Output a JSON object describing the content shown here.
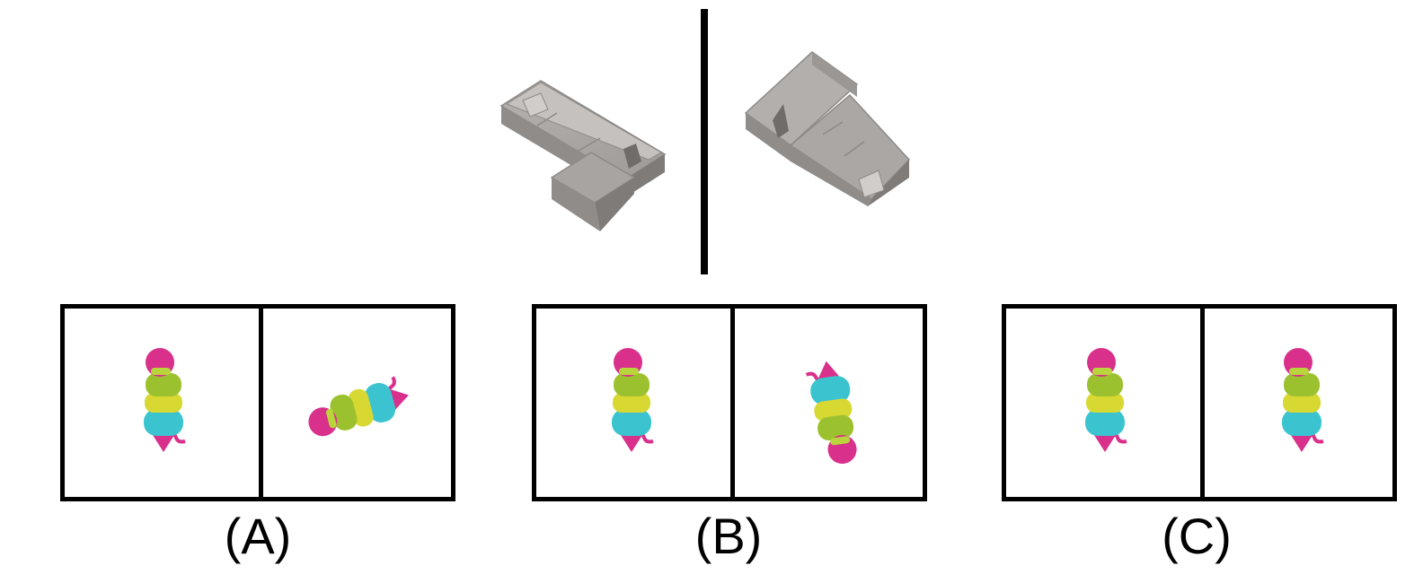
{
  "options": [
    {
      "id": "A",
      "label": "(A)"
    },
    {
      "id": "B",
      "label": "(B)"
    },
    {
      "id": "C",
      "label": "(C)"
    }
  ],
  "colors": {
    "sofa": "#a9a6a4",
    "magenta": "#d9308c",
    "green": "#9cc12f",
    "yellow": "#d8d832",
    "cyan": "#3bc4cf"
  },
  "icons": {
    "reference_left": "sofa-top-view",
    "reference_right": "sofa-mirrored-view",
    "figure": "stacked-ring-figure"
  }
}
